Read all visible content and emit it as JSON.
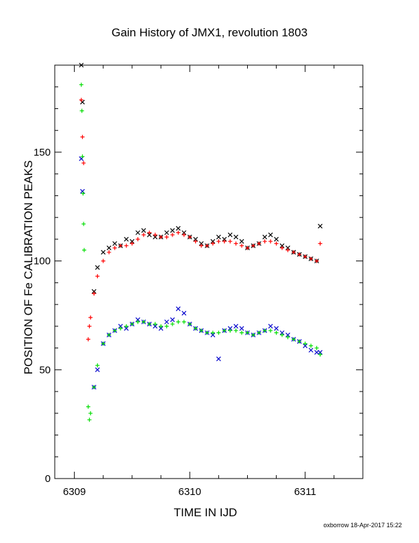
{
  "chart_data": {
    "type": "scatter",
    "title": "Gain History of JMX1, revolution 1803",
    "xlabel": "TIME IN IJD",
    "ylabel": "POSITION OF Fe CALIBRATION PEAKS",
    "xlim": [
      6308.83,
      6311.5
    ],
    "ylim": [
      0,
      190
    ],
    "x_ticks": [
      6309,
      6310,
      6311
    ],
    "y_ticks": [
      0,
      50,
      100,
      150
    ],
    "grid": false,
    "footer": "oxborrow 18-Apr-2017 15:22",
    "colors": {
      "upper_measured": "#000000",
      "upper_fit": "#ff0000",
      "lower_measured": "#0000cc",
      "lower_fit": "#00dd00"
    },
    "series": [
      {
        "marker": "x",
        "color": "#000000",
        "x": [
          6309.06,
          6309.07,
          6309.17,
          6309.2,
          6309.25,
          6309.3,
          6309.35,
          6309.4,
          6309.45,
          6309.5,
          6309.55,
          6309.6,
          6309.65,
          6309.7,
          6309.75,
          6309.8,
          6309.85,
          6309.9,
          6309.95,
          6310.0,
          6310.05,
          6310.1,
          6310.15,
          6310.2,
          6310.25,
          6310.3,
          6310.35,
          6310.4,
          6310.45,
          6310.5,
          6310.55,
          6310.6,
          6310.65,
          6310.7,
          6310.75,
          6310.8,
          6310.85,
          6310.9,
          6310.95,
          6311.0,
          6311.05,
          6311.1,
          6311.13
        ],
        "y": [
          190,
          173,
          86,
          97,
          104,
          106,
          108,
          107,
          110,
          109,
          113,
          114,
          112,
          111,
          111,
          113,
          114,
          115,
          113,
          111,
          110,
          108,
          107,
          109,
          111,
          110,
          112,
          111,
          109,
          106,
          107,
          108,
          111,
          112,
          110,
          107,
          106,
          104,
          103,
          102,
          101,
          100,
          116
        ]
      },
      {
        "marker": "+",
        "color": "#ff0000",
        "x": [
          6309.06,
          6309.07,
          6309.08,
          6309.12,
          6309.13,
          6309.14,
          6309.17,
          6309.2,
          6309.25,
          6309.3,
          6309.35,
          6309.4,
          6309.45,
          6309.5,
          6309.55,
          6309.6,
          6309.65,
          6309.7,
          6309.75,
          6309.8,
          6309.85,
          6309.9,
          6309.95,
          6310.0,
          6310.05,
          6310.1,
          6310.15,
          6310.2,
          6310.25,
          6310.3,
          6310.35,
          6310.4,
          6310.45,
          6310.5,
          6310.55,
          6310.6,
          6310.65,
          6310.7,
          6310.75,
          6310.8,
          6310.85,
          6310.9,
          6310.95,
          6311.0,
          6311.05,
          6311.1,
          6311.13
        ],
        "y": [
          174,
          157,
          145,
          64,
          70,
          74,
          85,
          93,
          100,
          104,
          106,
          107,
          107,
          108,
          110,
          112,
          113,
          112,
          111,
          111,
          112,
          113,
          112,
          111,
          109,
          107,
          107,
          108,
          109,
          109,
          109,
          108,
          107,
          106,
          107,
          108,
          109,
          109,
          108,
          106,
          105,
          104,
          103,
          102,
          101,
          100,
          108
        ]
      },
      {
        "marker": "x",
        "color": "#0000cc",
        "x": [
          6309.06,
          6309.07,
          6309.17,
          6309.2,
          6309.25,
          6309.3,
          6309.35,
          6309.4,
          6309.45,
          6309.5,
          6309.55,
          6309.6,
          6309.65,
          6309.7,
          6309.75,
          6309.8,
          6309.85,
          6309.9,
          6309.95,
          6310.0,
          6310.05,
          6310.1,
          6310.15,
          6310.2,
          6310.25,
          6310.3,
          6310.35,
          6310.4,
          6310.45,
          6310.5,
          6310.55,
          6310.6,
          6310.65,
          6310.7,
          6310.75,
          6310.8,
          6310.85,
          6310.9,
          6310.95,
          6311.0,
          6311.05,
          6311.1,
          6311.13
        ],
        "y": [
          147,
          132,
          42,
          50,
          62,
          66,
          68,
          70,
          69,
          71,
          73,
          72,
          71,
          70,
          69,
          72,
          73,
          78,
          76,
          71,
          69,
          68,
          67,
          66,
          55,
          68,
          69,
          70,
          69,
          67,
          66,
          67,
          68,
          70,
          69,
          67,
          66,
          64,
          63,
          61,
          59,
          58,
          58
        ]
      },
      {
        "marker": "+",
        "color": "#00dd00",
        "x": [
          6309.06,
          6309.065,
          6309.07,
          6309.075,
          6309.08,
          6309.085,
          6309.12,
          6309.13,
          6309.14,
          6309.17,
          6309.2,
          6309.25,
          6309.3,
          6309.35,
          6309.4,
          6309.45,
          6309.5,
          6309.55,
          6309.6,
          6309.65,
          6309.7,
          6309.75,
          6309.8,
          6309.85,
          6309.9,
          6309.95,
          6310.0,
          6310.05,
          6310.1,
          6310.15,
          6310.2,
          6310.25,
          6310.3,
          6310.35,
          6310.4,
          6310.45,
          6310.5,
          6310.55,
          6310.6,
          6310.65,
          6310.7,
          6310.75,
          6310.8,
          6310.85,
          6310.9,
          6310.95,
          6311.0,
          6311.05,
          6311.1,
          6311.13
        ],
        "y": [
          181,
          169,
          148,
          131,
          117,
          105,
          33,
          27,
          30,
          42,
          52,
          62,
          66,
          68,
          69,
          70,
          71,
          72,
          72,
          71,
          71,
          70,
          70,
          71,
          72,
          72,
          71,
          69,
          68,
          67,
          67,
          67,
          68,
          68,
          68,
          67,
          67,
          66,
          67,
          68,
          68,
          67,
          66,
          65,
          64,
          63,
          62,
          61,
          60,
          57
        ]
      }
    ]
  }
}
